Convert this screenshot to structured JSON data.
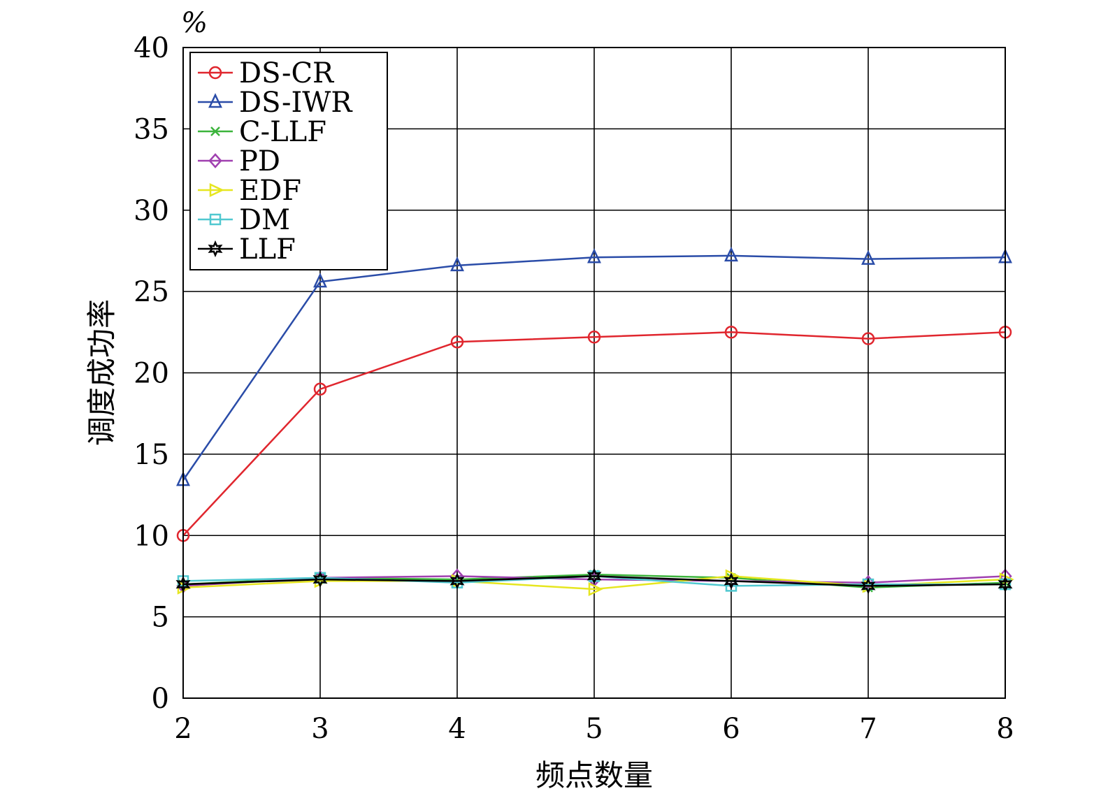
{
  "chart_data": {
    "type": "line",
    "xlabel": "频点数量",
    "ylabel": "调度成功率",
    "yunit": "%",
    "x": [
      2,
      3,
      4,
      5,
      6,
      7,
      8
    ],
    "xlim": [
      2,
      8
    ],
    "ylim": [
      0,
      40
    ],
    "xticks": [
      2,
      3,
      4,
      5,
      6,
      7,
      8
    ],
    "yticks": [
      0,
      5,
      10,
      15,
      20,
      25,
      30,
      35,
      40
    ],
    "grid": true,
    "legend_position": "top-left",
    "series": [
      {
        "name": "DS-CR",
        "color": "#e0262e",
        "marker": "circle",
        "values": [
          10.0,
          19.0,
          21.9,
          22.2,
          22.5,
          22.1,
          22.5
        ]
      },
      {
        "name": "DS-IWR",
        "color": "#2a4ca8",
        "marker": "triangle-up",
        "values": [
          13.4,
          25.6,
          26.6,
          27.1,
          27.2,
          27.0,
          27.1
        ]
      },
      {
        "name": "C-LLF",
        "color": "#3cb43c",
        "marker": "x",
        "values": [
          7.0,
          7.4,
          7.3,
          7.6,
          7.4,
          6.8,
          7.1
        ]
      },
      {
        "name": "PD",
        "color": "#a040b0",
        "marker": "diamond",
        "values": [
          6.9,
          7.4,
          7.5,
          7.3,
          7.2,
          7.1,
          7.5
        ]
      },
      {
        "name": "EDF",
        "color": "#e6e620",
        "marker": "triangle-right",
        "values": [
          6.8,
          7.2,
          7.2,
          6.7,
          7.5,
          6.9,
          7.3
        ]
      },
      {
        "name": "DM",
        "color": "#50c8d0",
        "marker": "square",
        "values": [
          7.2,
          7.4,
          7.1,
          7.5,
          6.9,
          7.0,
          7.0
        ]
      },
      {
        "name": "LLF",
        "color": "#000000",
        "marker": "hexagram",
        "values": [
          7.0,
          7.3,
          7.2,
          7.5,
          7.2,
          6.9,
          7.0
        ]
      }
    ]
  }
}
